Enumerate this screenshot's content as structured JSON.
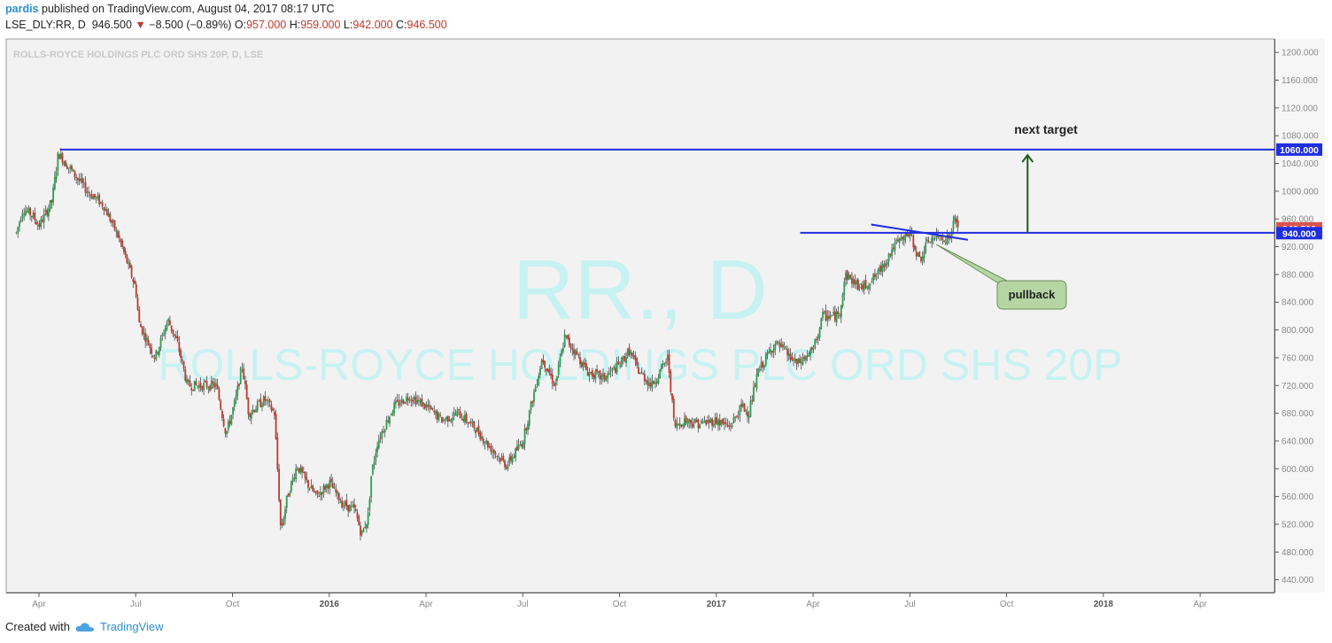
{
  "header": {
    "username": "pardis",
    "published_text": "published on TradingView.com, August 04, 2017 08:17 UTC",
    "symbol": "LSE_DLY:RR, D",
    "last": "946.500",
    "change": "−8.500 (−0.89%)",
    "o_label": "O:",
    "o_value": "957.000",
    "h_label": "H:",
    "h_value": "959.000",
    "l_label": "L:",
    "l_value": "942.000",
    "c_label": "C:",
    "c_value": "946.500"
  },
  "footer": {
    "created_with": "Created with",
    "brand": "TradingView"
  },
  "colors": {
    "up": "#2e9e4f",
    "down": "#c0392b",
    "level_line": "#1f2ee0",
    "watermark": "#c8f2f2",
    "plot_bg": "#f2f2f2",
    "annotation_fill": "#b5d6a3",
    "arrow": "#1d5e1d",
    "price_tag": "#d9534f"
  },
  "chart_data": {
    "type": "candlestick",
    "title": "ROLLS-ROYCE HOLDINGS PLC ORD SHS 20P, D, LSE",
    "watermark_main": "RR., D",
    "watermark_sub": "ROLLS-ROYCE HOLDINGS PLC ORD SHS 20P",
    "ylim": [
      420,
      1220
    ],
    "y_ticks": [
      "1200.000",
      "1160.000",
      "1120.000",
      "1080.000",
      "1040.000",
      "1000.000",
      "960.000",
      "920.000",
      "880.000",
      "840.000",
      "800.000",
      "760.000",
      "720.000",
      "680.000",
      "640.000",
      "600.000",
      "560.000",
      "520.000",
      "480.000",
      "440.000"
    ],
    "x_ticks": [
      "Apr",
      "Jul",
      "Oct",
      "2016",
      "Apr",
      "Jul",
      "Oct",
      "2017",
      "Apr",
      "Jul",
      "Oct",
      "2018",
      "Apr"
    ],
    "x_tick_month_index": [
      0,
      3,
      6,
      9,
      12,
      15,
      18,
      21,
      24,
      27,
      30,
      33,
      36
    ],
    "bold_x_ticks": [
      "2016",
      "2017",
      "2018"
    ],
    "price_path": [
      [
        -0.7,
        940
      ],
      [
        -0.5,
        975
      ],
      [
        -0.2,
        965
      ],
      [
        0.0,
        950
      ],
      [
        0.4,
        985
      ],
      [
        0.6,
        1055
      ],
      [
        1.0,
        1030
      ],
      [
        1.5,
        1000
      ],
      [
        2.0,
        980
      ],
      [
        2.5,
        930
      ],
      [
        3.0,
        860
      ],
      [
        3.1,
        810
      ],
      [
        3.6,
        760
      ],
      [
        4.0,
        815
      ],
      [
        4.3,
        780
      ],
      [
        4.6,
        720
      ],
      [
        5.5,
        720
      ],
      [
        5.8,
        650
      ],
      [
        6.1,
        700
      ],
      [
        6.3,
        750
      ],
      [
        6.5,
        680
      ],
      [
        7.0,
        700
      ],
      [
        7.3,
        680
      ],
      [
        7.5,
        510
      ],
      [
        7.7,
        560
      ],
      [
        8.0,
        605
      ],
      [
        8.3,
        580
      ],
      [
        8.6,
        560
      ],
      [
        9.0,
        580
      ],
      [
        9.4,
        550
      ],
      [
        9.8,
        540
      ],
      [
        10.0,
        505
      ],
      [
        10.2,
        530
      ],
      [
        10.3,
        590
      ],
      [
        10.5,
        640
      ],
      [
        11.0,
        690
      ],
      [
        11.5,
        705
      ],
      [
        12.0,
        690
      ],
      [
        12.5,
        670
      ],
      [
        13.0,
        680
      ],
      [
        13.5,
        660
      ],
      [
        14.0,
        630
      ],
      [
        14.5,
        605
      ],
      [
        15.0,
        640
      ],
      [
        15.3,
        700
      ],
      [
        15.6,
        760
      ],
      [
        16.0,
        720
      ],
      [
        16.3,
        790
      ],
      [
        16.6,
        770
      ],
      [
        17.0,
        740
      ],
      [
        17.5,
        730
      ],
      [
        18.0,
        750
      ],
      [
        18.3,
        770
      ],
      [
        18.6,
        740
      ],
      [
        19.0,
        720
      ],
      [
        19.5,
        760
      ],
      [
        19.7,
        660
      ],
      [
        20.0,
        670
      ],
      [
        20.5,
        665
      ],
      [
        21.0,
        670
      ],
      [
        21.4,
        660
      ],
      [
        21.8,
        690
      ],
      [
        22.0,
        680
      ],
      [
        22.3,
        740
      ],
      [
        22.8,
        780
      ],
      [
        23.0,
        775
      ],
      [
        23.5,
        750
      ],
      [
        24.0,
        770
      ],
      [
        24.3,
        820
      ],
      [
        24.8,
        820
      ],
      [
        25.0,
        880
      ],
      [
        25.5,
        860
      ],
      [
        26.0,
        880
      ],
      [
        26.5,
        920
      ],
      [
        27.0,
        940
      ],
      [
        27.3,
        900
      ],
      [
        27.6,
        930
      ],
      [
        28.0,
        935
      ],
      [
        28.2,
        930
      ],
      [
        28.4,
        960
      ],
      [
        28.5,
        946.5
      ]
    ],
    "horizontal_levels": [
      {
        "label": "1060.000",
        "value": 1060
      },
      {
        "label": "940.000",
        "value": 940
      }
    ],
    "last_price_label": "946.500",
    "last_price": 946.5,
    "annotations": [
      {
        "text": "next target",
        "kind": "label"
      },
      {
        "text": "pullback",
        "kind": "callout"
      }
    ]
  }
}
